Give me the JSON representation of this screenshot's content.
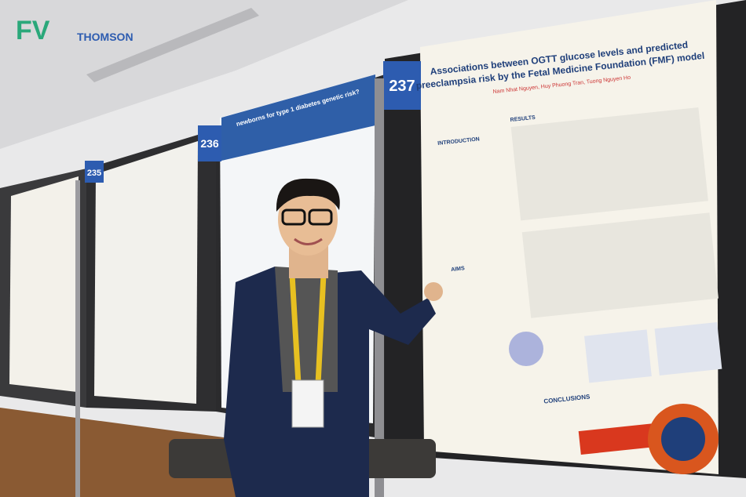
{
  "logo": {
    "mark": "FV",
    "brand": "THOMSON"
  },
  "posters": [
    {
      "number": "235"
    },
    {
      "number": "236",
      "title": "newborns for type 1 diabetes genetic risk?"
    },
    {
      "number": "237",
      "title": [
        "Associations between OGTT glucose levels and predicted",
        "preeclampsia risk by the Fetal Medicine Foundation (FMF) model"
      ],
      "authors": "Nam Nhat Nguyen, Huy Phuong Tran, Tuong Nguyen Ho",
      "sections": [
        "INTRODUCTION",
        "RESULTS",
        "AIMS",
        "CONCLUSIONS"
      ]
    }
  ]
}
